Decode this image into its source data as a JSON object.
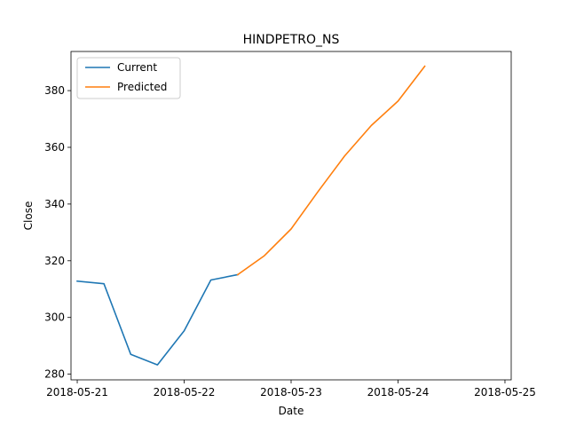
{
  "chart_data": {
    "type": "line",
    "title": "HINDPETRO_NS",
    "xlabel": "Date",
    "ylabel": "Close",
    "x_ticks": [
      "2018-05-21",
      "2018-05-22",
      "2018-05-23",
      "2018-05-24",
      "2018-05-25"
    ],
    "y_ticks": [
      280,
      300,
      320,
      340,
      360,
      380
    ],
    "xlim": [
      "2018-05-20T22:36",
      "2018-05-25T01:24"
    ],
    "ylim": [
      278.0,
      393.8
    ],
    "grid": false,
    "legend_position": "top-left",
    "series": [
      {
        "name": "Current",
        "color": "#1f77b4",
        "points": [
          {
            "x": "2018-05-21T00:00",
            "y": 312.8
          },
          {
            "x": "2018-05-21T06:00",
            "y": 311.9
          },
          {
            "x": "2018-05-21T12:00",
            "y": 287.0
          },
          {
            "x": "2018-05-21T18:00",
            "y": 283.3
          },
          {
            "x": "2018-05-22T00:00",
            "y": 295.3
          },
          {
            "x": "2018-05-22T06:00",
            "y": 313.2
          },
          {
            "x": "2018-05-22T12:00",
            "y": 315.1
          }
        ]
      },
      {
        "name": "Predicted",
        "color": "#ff7f0e",
        "points": [
          {
            "x": "2018-05-22T12:00",
            "y": 315.1
          },
          {
            "x": "2018-05-22T18:00",
            "y": 321.8
          },
          {
            "x": "2018-05-23T00:00",
            "y": 331.2
          },
          {
            "x": "2018-05-23T06:00",
            "y": 344.3
          },
          {
            "x": "2018-05-23T12:00",
            "y": 356.9
          },
          {
            "x": "2018-05-23T18:00",
            "y": 367.7
          },
          {
            "x": "2018-05-24T00:00",
            "y": 376.3
          },
          {
            "x": "2018-05-24T06:00",
            "y": 388.6
          }
        ]
      }
    ]
  }
}
